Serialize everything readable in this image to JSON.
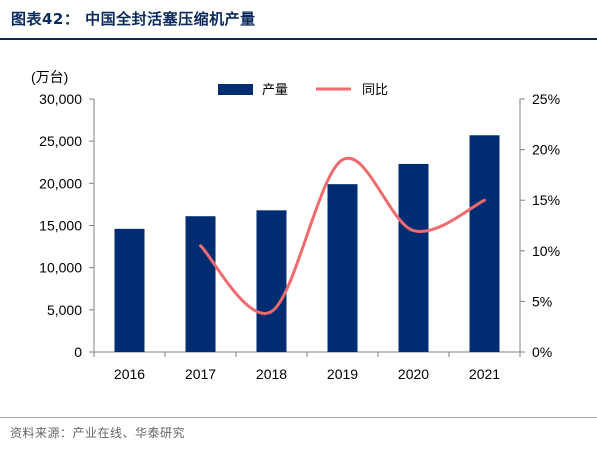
{
  "figure": {
    "title": "图表42：  中国全封活塞压缩机产量",
    "source": "资料来源：产业在线、华泰研究"
  },
  "colors": {
    "bar": "#002d72",
    "line": "#f06b6e",
    "title": "#0b2a5c"
  },
  "chart_data": {
    "type": "bar",
    "categories": [
      "2016",
      "2017",
      "2018",
      "2019",
      "2020",
      "2021"
    ],
    "unit_label": "(万台)",
    "series": [
      {
        "name": "产量",
        "type": "bar",
        "axis": "left",
        "values": [
          14600,
          16100,
          16800,
          19900,
          22300,
          25700
        ]
      },
      {
        "name": "同比",
        "type": "line",
        "axis": "right",
        "values": [
          null,
          10.5,
          4.0,
          19.0,
          12.0,
          15.0
        ]
      }
    ],
    "y_left": {
      "lim": [
        0,
        30000
      ],
      "ticks": [
        0,
        5000,
        10000,
        15000,
        20000,
        25000,
        30000
      ],
      "tick_labels": [
        "0",
        "5,000",
        "10,000",
        "15,000",
        "20,000",
        "25,000",
        "30,000"
      ]
    },
    "y_right": {
      "lim": [
        0,
        25
      ],
      "ticks": [
        0,
        5,
        10,
        15,
        20,
        25
      ],
      "tick_labels": [
        "0%",
        "5%",
        "10%",
        "15%",
        "20%",
        "25%"
      ]
    },
    "grid": false,
    "legend": "top-center"
  }
}
